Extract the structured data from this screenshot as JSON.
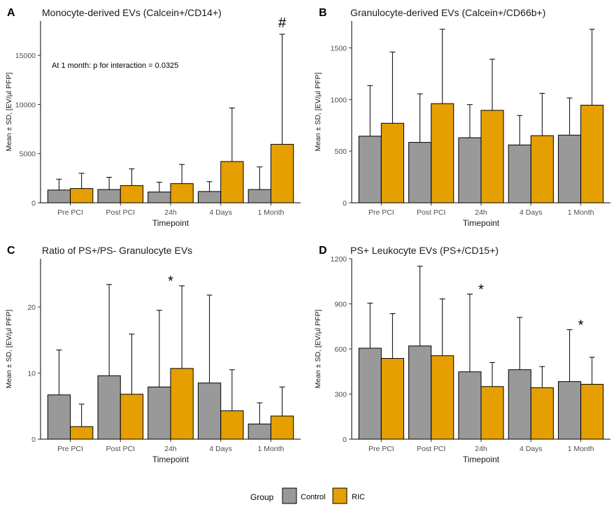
{
  "chart_data": [
    {
      "type": "bar",
      "panel_letter": "A",
      "title": "Monocyte-derived EVs (Calcein+/CD14+)",
      "xlabel": "Timepoint",
      "ylabel": "Mean ± SD, [EV/µl PFP]",
      "categories": [
        "Pre PCI",
        "Post PCI",
        "24h",
        "4 Days",
        "1 Month"
      ],
      "ylim": [
        0,
        18500
      ],
      "yticks": [
        0,
        5000,
        10000,
        15000
      ],
      "series": [
        {
          "name": "Control",
          "values": [
            1300,
            1350,
            1100,
            1150,
            1350
          ],
          "sd": [
            1100,
            1250,
            1000,
            1000,
            2300
          ]
        },
        {
          "name": "RIC",
          "values": [
            1450,
            1750,
            1950,
            4200,
            5950
          ],
          "sd": [
            1550,
            1700,
            1950,
            5450,
            11200
          ]
        }
      ],
      "note": "At 1 month: p for interaction = 0.0325",
      "markers": [
        {
          "category": "1 Month",
          "text": "#"
        }
      ]
    },
    {
      "type": "bar",
      "panel_letter": "B",
      "title": "Granulocyte-derived EVs (Calcein+/CD66b+)",
      "xlabel": "Timepoint",
      "ylabel": "Mean ± SD, [EV/µl PFP]",
      "categories": [
        "Pre PCI",
        "Post PCI",
        "24h",
        "4 Days",
        "1 Month"
      ],
      "ylim": [
        0,
        1760
      ],
      "yticks": [
        0,
        500,
        1000,
        1500
      ],
      "series": [
        {
          "name": "Control",
          "values": [
            645,
            585,
            630,
            560,
            655
          ],
          "sd": [
            490,
            470,
            320,
            285,
            360
          ]
        },
        {
          "name": "RIC",
          "values": [
            770,
            960,
            895,
            650,
            945
          ],
          "sd": [
            690,
            720,
            495,
            410,
            735
          ]
        }
      ],
      "markers": []
    },
    {
      "type": "bar",
      "panel_letter": "C",
      "title": "Ratio of PS+/PS- Granulocyte EVs",
      "xlabel": "Timepoint",
      "ylabel": "Mean ± SD, [EV/µl PFP]",
      "categories": [
        "Pre PCI",
        "Post PCI",
        "24h",
        "4 Days",
        "1 Month"
      ],
      "ylim": [
        0,
        27.3
      ],
      "yticks": [
        0,
        10,
        20
      ],
      "series": [
        {
          "name": "Control",
          "values": [
            6.7,
            9.6,
            7.9,
            8.5,
            2.3
          ],
          "sd": [
            6.8,
            13.8,
            11.6,
            13.3,
            3.2
          ]
        },
        {
          "name": "RIC",
          "values": [
            1.9,
            6.8,
            10.7,
            4.3,
            3.5
          ],
          "sd": [
            3.4,
            9.1,
            12.5,
            6.2,
            4.4
          ]
        }
      ],
      "markers": [
        {
          "category": "24h",
          "text": "*"
        }
      ]
    },
    {
      "type": "bar",
      "panel_letter": "D",
      "title": "PS+ Leukocyte EVs (PS+/CD15+)",
      "xlabel": "Timepoint",
      "ylabel": "Mean ± SD, [EV/µl PFP]",
      "categories": [
        "Pre PCI",
        "Post PCI",
        "24h",
        "4 Days",
        "1 Month"
      ],
      "ylim": [
        0,
        1200
      ],
      "yticks": [
        0,
        300,
        600,
        900,
        1200
      ],
      "series": [
        {
          "name": "Control",
          "values": [
            605,
            620,
            448,
            462,
            383
          ],
          "sd": [
            300,
            530,
            517,
            348,
            345
          ]
        },
        {
          "name": "RIC",
          "values": [
            537,
            555,
            350,
            342,
            365
          ],
          "sd": [
            298,
            378,
            160,
            141,
            180
          ]
        }
      ],
      "markers": [
        {
          "category": "24h",
          "text": "*"
        },
        {
          "category": "1 Month",
          "text": "*"
        }
      ]
    }
  ],
  "legend": {
    "title": "Group",
    "items": [
      {
        "label": "Control",
        "color": "#999999"
      },
      {
        "label": "RIC",
        "color": "#E69F00"
      }
    ]
  },
  "colors": {
    "control": "#999999",
    "ric": "#E69F00"
  }
}
